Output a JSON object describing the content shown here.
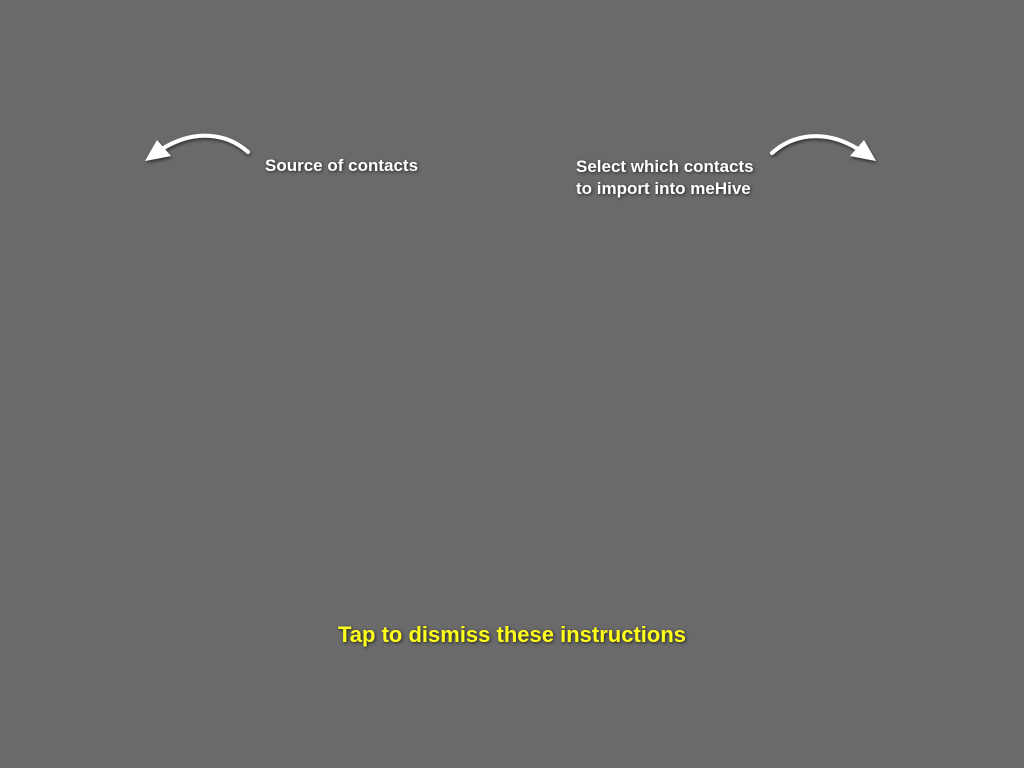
{
  "overlay": {
    "background_color": "#6a6a6a",
    "text_color": "#ffffff",
    "dismiss_color": "#ffff1a"
  },
  "annotations": {
    "source": {
      "text": "Source of contacts",
      "icon": "curved-arrow-left-icon"
    },
    "select": {
      "line1": "Select which contacts",
      "line2": "to import into meHive",
      "icon": "curved-arrow-right-icon"
    }
  },
  "dismiss": {
    "text": "Tap to dismiss these instructions"
  }
}
